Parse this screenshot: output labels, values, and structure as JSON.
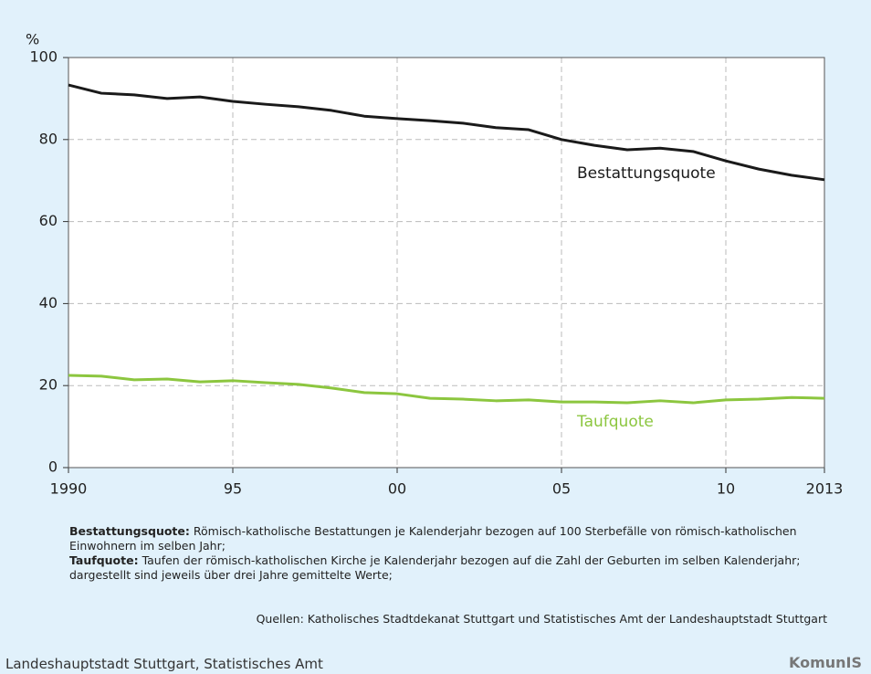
{
  "chart_data": {
    "type": "line",
    "ylabel": "%",
    "x": [
      1990,
      1991,
      1992,
      1993,
      1994,
      1995,
      1996,
      1997,
      1998,
      1999,
      2000,
      2001,
      2002,
      2003,
      2004,
      2005,
      2006,
      2007,
      2008,
      2009,
      2010,
      2011,
      2012,
      2013
    ],
    "series": [
      {
        "name": "Bestattungsquote",
        "color": "#1a1a1a",
        "values": [
          93.3,
          91.3,
          90.9,
          90.0,
          90.4,
          89.3,
          88.6,
          88.0,
          87.1,
          85.7,
          85.1,
          84.6,
          84.0,
          82.9,
          82.4,
          80.0,
          78.6,
          77.5,
          77.9,
          77.1,
          74.8,
          72.8,
          71.3,
          70.2
        ]
      },
      {
        "name": "Taufquote",
        "color": "#8cc63f",
        "values": [
          22.5,
          22.3,
          21.4,
          21.6,
          20.9,
          21.2,
          20.7,
          20.3,
          19.4,
          18.3,
          18.0,
          16.9,
          16.7,
          16.3,
          16.5,
          16.0,
          16.0,
          15.8,
          16.3,
          15.8,
          16.5,
          16.7,
          17.1,
          16.9
        ]
      }
    ],
    "xlim": [
      1990,
      2013
    ],
    "xticks": [
      1990,
      {
        "value": 1995,
        "label": "95"
      },
      {
        "value": 2000,
        "label": "00"
      },
      {
        "value": 2005,
        "label": "05"
      },
      {
        "value": 2010,
        "label": "10"
      },
      2013
    ],
    "ylim": [
      0,
      100
    ],
    "yticks": [
      0,
      20,
      40,
      60,
      80,
      100
    ],
    "grid": true
  },
  "notes": [
    {
      "term": "Bestattungsquote:",
      "text": "Römisch-katholische Bestattungen je Kalenderjahr bezogen auf 100 Sterbefälle von römisch-katholischen  Einwohnern im selben Jahr;"
    },
    {
      "term": "Taufquote:",
      "text": "Taufen der römisch-katholischen Kirche je Kalenderjahr bezogen auf die Zahl der Geburten im selben Kalenderjahr; dargestellt sind jeweils über drei Jahre gemittelte Werte;"
    }
  ],
  "source": "Quellen: Katholisches Stadtdekanat Stuttgart und Statistisches Amt der Landeshauptstadt Stuttgart",
  "footer": "Landeshauptstadt Stuttgart, Statistisches Amt",
  "logo": "KomunIS"
}
